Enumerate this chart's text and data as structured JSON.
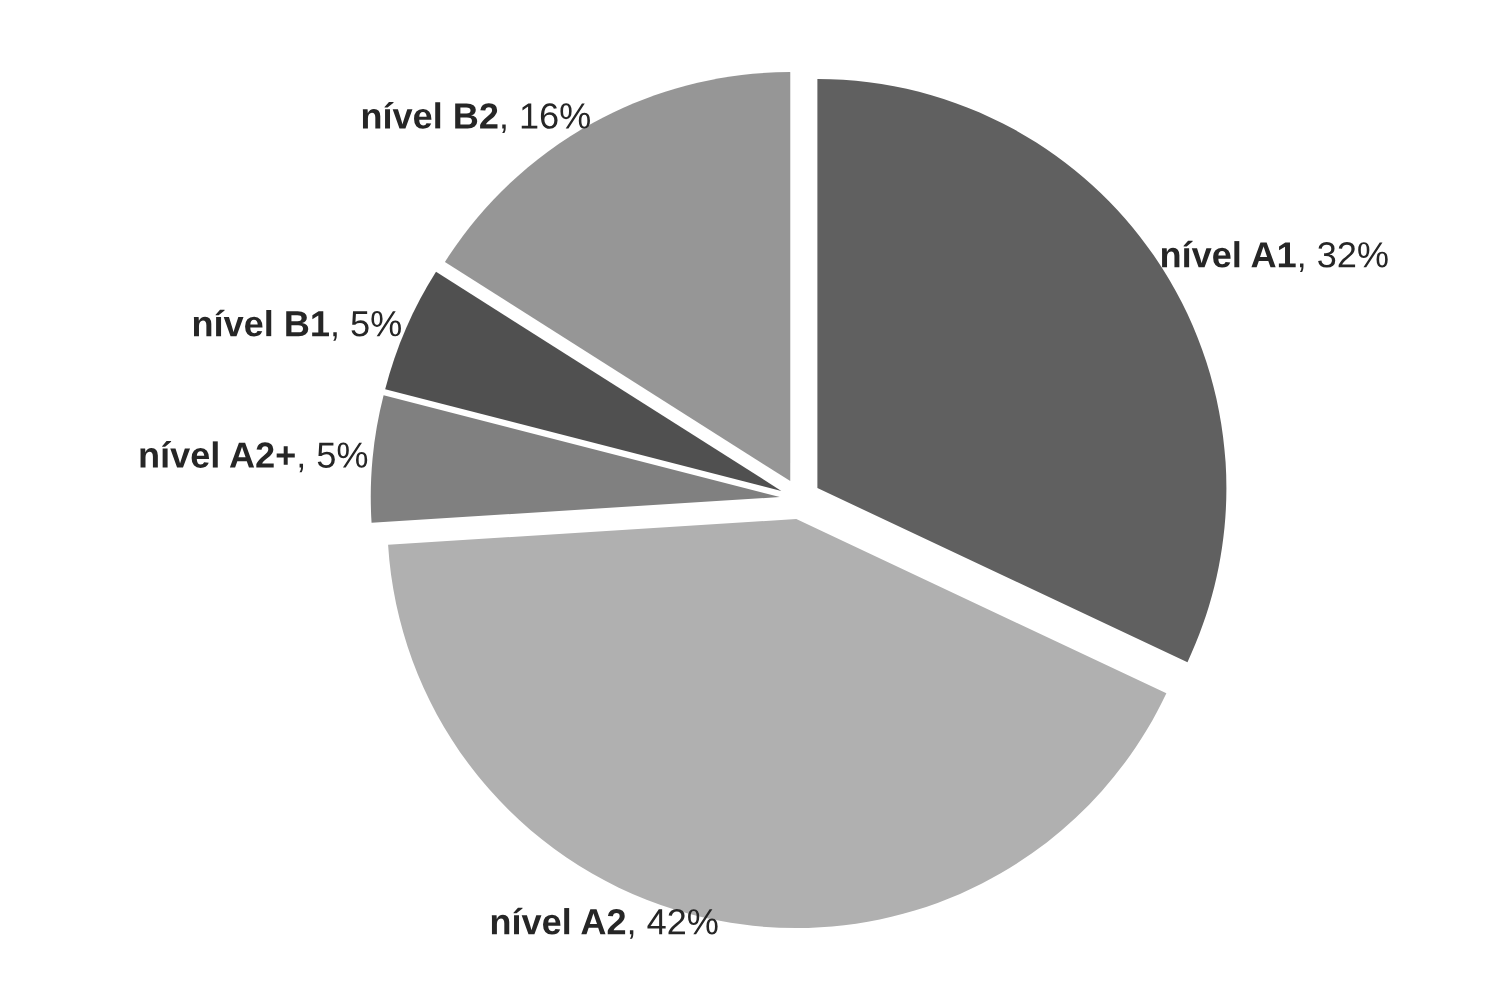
{
  "chart_data": {
    "type": "pie",
    "categories": [
      "nível A1",
      "nível A2",
      "nível A2+",
      "nível B1",
      "nível B2"
    ],
    "values": [
      32,
      42,
      5,
      5,
      16
    ],
    "value_labels": [
      ", 32%",
      ", 42%",
      ", 5%",
      ", 5%",
      ", 16%"
    ],
    "colors": [
      "#606060",
      "#b0b0b0",
      "#808080",
      "#505050",
      "#969696"
    ],
    "legend": false
  }
}
